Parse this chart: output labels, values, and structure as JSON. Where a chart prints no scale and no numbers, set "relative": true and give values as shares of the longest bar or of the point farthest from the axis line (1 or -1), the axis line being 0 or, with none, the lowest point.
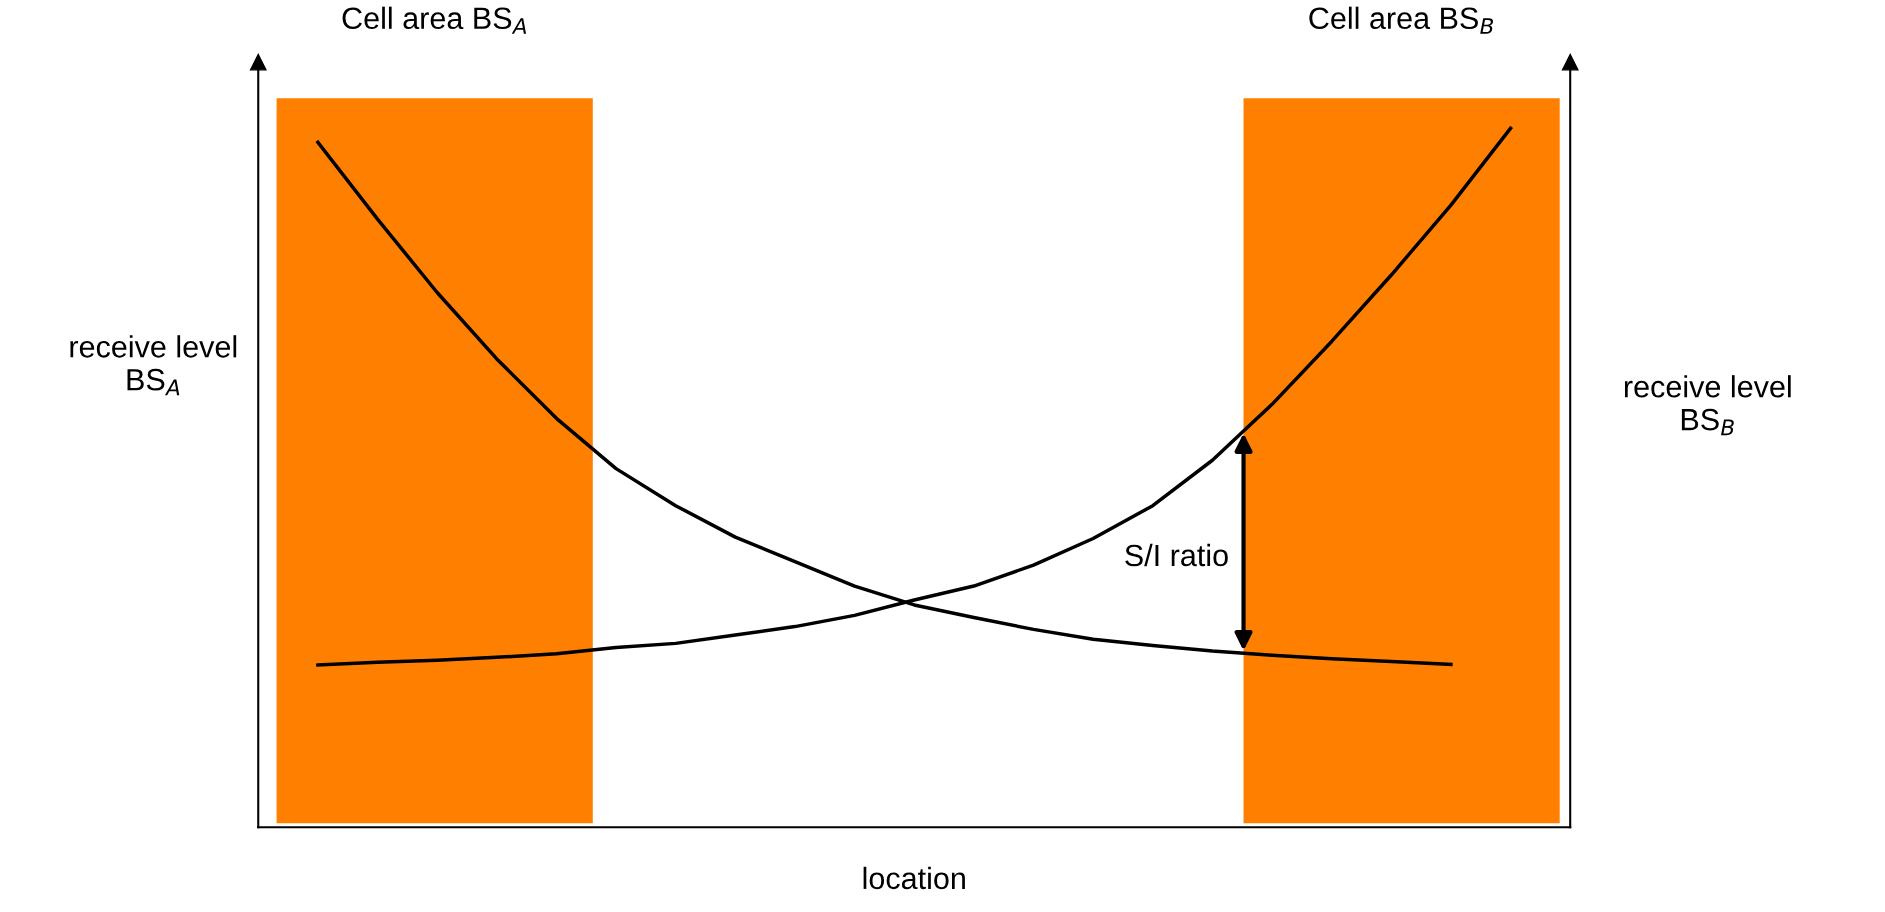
{
  "chart_data": {
    "type": "line",
    "relative": true,
    "xlabel": "location",
    "ylabel": "receive level\nBS$_{A}$",
    "y2label": "receive level\nBS$_{B}$",
    "legend": false,
    "marker": "none",
    "line_style": "solid",
    "categories": [
      null,
      null,
      null,
      null,
      null,
      null,
      null,
      null,
      null,
      null,
      null,
      null,
      null,
      null,
      null,
      null,
      null,
      null,
      null,
      null,
      null,
      null,
      null
    ],
    "series": [
      {
        "color": "#000000",
        "values": [
          null,
          0.98,
          0.87,
          0.765,
          0.67,
          0.585,
          0.513,
          0.46,
          0.415,
          0.38,
          0.345,
          0.318,
          0.3,
          0.283,
          0.269,
          0.26,
          0.252,
          0.246,
          0.241,
          0.237,
          0.233,
          null,
          null
        ]
      },
      {
        "color": "#000000",
        "values": [
          null,
          0.232,
          0.236,
          0.239,
          0.243,
          0.248,
          0.257,
          0.263,
          0.275,
          0.287,
          0.303,
          0.325,
          0.345,
          0.375,
          0.413,
          0.46,
          0.525,
          0.605,
          0.695,
          0.79,
          0.89,
          1.0,
          null
        ]
      }
    ],
    "annotations": [
      "Cell area BS$_{A}$",
      "Cell area BS$_{B}$",
      "S/I ratio"
    ]
  }
}
